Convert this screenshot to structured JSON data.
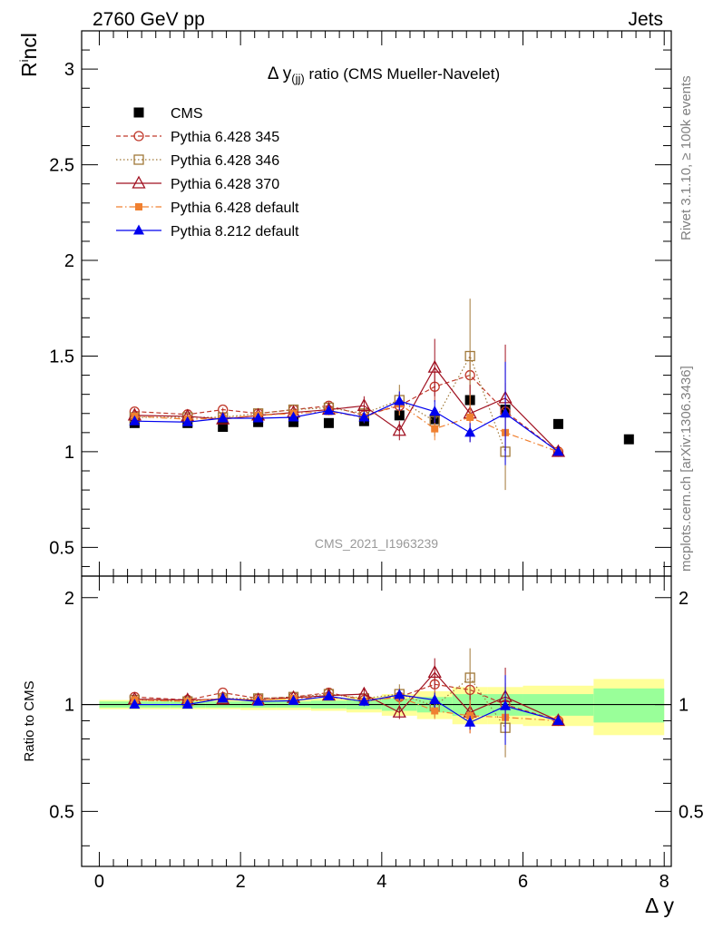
{
  "header": {
    "left": "2760 GeV pp",
    "right": "Jets"
  },
  "side_labels": {
    "rivet": "Rivet 3.1.10, ≥ 100k events",
    "mcplots": "mcplots.cern.ch [arXiv:1306.3436]"
  },
  "watermark": "CMS_2021_I1963239",
  "colors": {
    "cms": "#000000",
    "p345": "#c0392b",
    "p346": "#a07838",
    "p370": "#a01020",
    "pdef": "#f08030",
    "p8": "#0000ee",
    "band_yellow": "#ffff99",
    "band_green": "#99ff99"
  },
  "chart_data": [
    {
      "type": "scatter",
      "panel": "main",
      "title_prefix": "Δ y",
      "title_sub": "(jj)",
      "title_suffix": " ratio (CMS Mueller-Navelet)",
      "ylabel_main": "R",
      "ylabel_sup": "i",
      "ylabel_tail": "ncl",
      "xlim": [
        -0.25,
        8.1
      ],
      "ylim": [
        0.35,
        3.2
      ],
      "yticks": [
        0.5,
        1,
        1.5,
        2,
        2.5,
        3
      ],
      "ytick_labels": [
        "0.5",
        "1",
        "1.5",
        "2",
        "2.5",
        "3"
      ],
      "legend_position": "top-left",
      "series": [
        {
          "name": "CMS",
          "key": "cms",
          "marker": "square-filled",
          "line": "none",
          "x": [
            0.5,
            1.25,
            1.75,
            2.25,
            2.75,
            3.25,
            3.75,
            4.25,
            4.75,
            5.25,
            5.75,
            6.5,
            7.5
          ],
          "y": [
            1.15,
            1.15,
            1.13,
            1.155,
            1.155,
            1.15,
            1.16,
            1.19,
            1.17,
            1.27,
            1.22,
            1.145,
            1.065
          ],
          "err": [
            0.01,
            0.01,
            0.01,
            0.01,
            0.01,
            0.01,
            0.01,
            0.02,
            0.02,
            0.03,
            0.03,
            0.02,
            0.02
          ]
        },
        {
          "name": "Pythia 6.428 345",
          "key": "p345",
          "marker": "circle-open",
          "line": "dashed",
          "x": [
            0.5,
            1.25,
            1.75,
            2.25,
            2.75,
            3.25,
            3.75,
            4.25,
            4.75,
            5.25,
            5.75,
            6.5
          ],
          "y": [
            1.21,
            1.195,
            1.22,
            1.2,
            1.22,
            1.24,
            1.19,
            1.24,
            1.34,
            1.4,
            1.21,
            1.0
          ],
          "err": [
            0.01,
            0.01,
            0.01,
            0.01,
            0.015,
            0.02,
            0.03,
            0.05,
            0.08,
            0.12,
            0.15,
            0.0
          ]
        },
        {
          "name": "Pythia 6.428 346",
          "key": "p346",
          "marker": "square-open",
          "line": "dotted",
          "x": [
            0.5,
            1.25,
            1.75,
            2.25,
            2.75,
            3.25,
            3.75,
            4.25,
            4.75,
            5.25,
            5.75
          ],
          "y": [
            1.18,
            1.18,
            1.18,
            1.2,
            1.22,
            1.23,
            1.2,
            1.27,
            1.16,
            1.5,
            1.0
          ],
          "err": [
            0.01,
            0.01,
            0.01,
            0.01,
            0.015,
            0.02,
            0.03,
            0.08,
            0.08,
            0.3,
            0.2
          ]
        },
        {
          "name": "Pythia 6.428 370",
          "key": "p370",
          "marker": "triangle-open",
          "line": "solid",
          "x": [
            0.5,
            1.25,
            1.75,
            2.25,
            2.75,
            3.25,
            3.75,
            4.25,
            4.75,
            5.25,
            5.75,
            6.5
          ],
          "y": [
            1.19,
            1.185,
            1.17,
            1.19,
            1.205,
            1.22,
            1.24,
            1.11,
            1.44,
            1.2,
            1.28,
            1.0
          ],
          "err": [
            0.01,
            0.01,
            0.01,
            0.01,
            0.015,
            0.02,
            0.05,
            0.05,
            0.15,
            0.15,
            0.28,
            0.0
          ]
        },
        {
          "name": "Pythia 6.428 default",
          "key": "pdef",
          "marker": "square-filled-small",
          "line": "dashdot",
          "x": [
            0.5,
            1.25,
            1.75,
            2.25,
            2.75,
            3.25,
            3.75,
            4.25,
            4.75,
            5.25,
            5.75,
            6.5
          ],
          "y": [
            1.185,
            1.17,
            1.175,
            1.19,
            1.2,
            1.21,
            1.18,
            1.25,
            1.12,
            1.18,
            1.1,
            1.0
          ],
          "err": [
            0.01,
            0.01,
            0.01,
            0.01,
            0.015,
            0.02,
            0.03,
            0.06,
            0.06,
            0.12,
            0.12,
            0.0
          ]
        },
        {
          "name": "Pythia 8.212 default",
          "key": "p8",
          "marker": "triangle-filled",
          "line": "solid",
          "x": [
            0.5,
            1.25,
            1.75,
            2.25,
            2.75,
            3.25,
            3.75,
            4.25,
            4.75,
            5.25,
            5.75,
            6.5
          ],
          "y": [
            1.16,
            1.155,
            1.175,
            1.175,
            1.18,
            1.215,
            1.18,
            1.265,
            1.21,
            1.1,
            1.2,
            1.0
          ],
          "err": [
            0.01,
            0.01,
            0.01,
            0.01,
            0.015,
            0.02,
            0.03,
            0.05,
            0.06,
            0.05,
            0.27,
            0.0
          ]
        }
      ]
    },
    {
      "type": "scatter",
      "panel": "ratio",
      "ylabel": "Ratio to CMS",
      "xlabel": "Δ y",
      "xlim": [
        -0.25,
        8.1
      ],
      "ylim": [
        0.35,
        2.3
      ],
      "xticks": [
        0,
        2,
        4,
        6,
        8
      ],
      "xtick_labels": [
        "0",
        "2",
        "4",
        "6",
        "8"
      ],
      "yticks": [
        0.5,
        1,
        2
      ],
      "ytick_labels": [
        "0.5",
        "1",
        "2"
      ],
      "bands": {
        "edges": [
          0.0,
          1.0,
          1.5,
          2.0,
          2.5,
          3.0,
          3.5,
          4.0,
          4.5,
          5.0,
          5.5,
          6.0,
          7.0,
          8.0
        ],
        "yellow": [
          0.03,
          0.03,
          0.03,
          0.035,
          0.035,
          0.04,
          0.05,
          0.07,
          0.09,
          0.12,
          0.12,
          0.13,
          0.18
        ],
        "green": [
          0.02,
          0.02,
          0.02,
          0.02,
          0.02,
          0.025,
          0.03,
          0.04,
          0.05,
          0.07,
          0.07,
          0.07,
          0.11
        ]
      },
      "series": [
        {
          "key": "p345",
          "x": [
            0.5,
            1.25,
            1.75,
            2.25,
            2.75,
            3.25,
            3.75,
            4.25,
            4.75,
            5.25,
            5.75,
            6.5
          ],
          "y": [
            1.05,
            1.03,
            1.08,
            1.04,
            1.05,
            1.08,
            1.03,
            1.05,
            1.14,
            1.1,
            1.0,
            0.9
          ],
          "err": [
            0.01,
            0.01,
            0.01,
            0.01,
            0.015,
            0.02,
            0.03,
            0.05,
            0.08,
            0.12,
            0.15,
            0.0
          ]
        },
        {
          "key": "p346",
          "x": [
            0.5,
            1.25,
            1.75,
            2.25,
            2.75,
            3.25,
            3.75,
            4.25,
            4.75,
            5.25,
            5.75
          ],
          "y": [
            1.03,
            1.02,
            1.04,
            1.04,
            1.05,
            1.07,
            1.04,
            1.07,
            0.99,
            1.19,
            0.86
          ],
          "err": [
            0.01,
            0.01,
            0.01,
            0.01,
            0.015,
            0.02,
            0.03,
            0.07,
            0.07,
            0.25,
            0.15
          ]
        },
        {
          "key": "p370",
          "x": [
            0.5,
            1.25,
            1.75,
            2.25,
            2.75,
            3.25,
            3.75,
            4.25,
            4.75,
            5.25,
            5.75,
            6.5
          ],
          "y": [
            1.035,
            1.03,
            1.035,
            1.03,
            1.045,
            1.06,
            1.07,
            0.95,
            1.23,
            0.95,
            1.05,
            0.9
          ],
          "err": [
            0.01,
            0.01,
            0.01,
            0.01,
            0.015,
            0.02,
            0.04,
            0.04,
            0.12,
            0.12,
            0.22,
            0.0
          ]
        },
        {
          "key": "pdef",
          "x": [
            0.5,
            1.25,
            1.75,
            2.25,
            2.75,
            3.25,
            3.75,
            4.25,
            4.75,
            5.25,
            5.75,
            6.5
          ],
          "y": [
            1.03,
            1.02,
            1.04,
            1.03,
            1.04,
            1.05,
            1.02,
            1.05,
            0.96,
            0.93,
            0.92,
            0.9
          ],
          "err": [
            0.01,
            0.01,
            0.01,
            0.01,
            0.015,
            0.02,
            0.03,
            0.05,
            0.05,
            0.1,
            0.1,
            0.0
          ]
        },
        {
          "key": "p8",
          "x": [
            0.5,
            1.25,
            1.75,
            2.25,
            2.75,
            3.25,
            3.75,
            4.25,
            4.75,
            5.25,
            5.75,
            6.5
          ],
          "y": [
            1.0,
            1.0,
            1.04,
            1.02,
            1.025,
            1.055,
            1.02,
            1.065,
            1.03,
            0.89,
            0.99,
            0.9
          ],
          "err": [
            0.01,
            0.01,
            0.01,
            0.01,
            0.015,
            0.02,
            0.03,
            0.04,
            0.05,
            0.04,
            0.22,
            0.0
          ]
        }
      ]
    }
  ]
}
